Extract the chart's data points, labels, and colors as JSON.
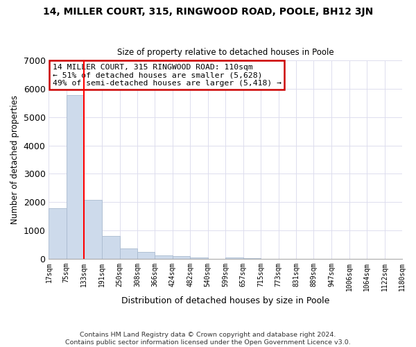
{
  "title": "14, MILLER COURT, 315, RINGWOOD ROAD, POOLE, BH12 3JN",
  "subtitle": "Size of property relative to detached houses in Poole",
  "xlabel": "Distribution of detached houses by size in Poole",
  "ylabel": "Number of detached properties",
  "bar_color": "#cddaeb",
  "bar_edge_color": "#aabbd0",
  "vline_x": 133,
  "vline_color": "red",
  "categories": [
    "17sqm",
    "75sqm",
    "133sqm",
    "191sqm",
    "250sqm",
    "308sqm",
    "366sqm",
    "424sqm",
    "482sqm",
    "540sqm",
    "599sqm",
    "657sqm",
    "715sqm",
    "773sqm",
    "831sqm",
    "889sqm",
    "947sqm",
    "1006sqm",
    "1064sqm",
    "1122sqm",
    "1180sqm"
  ],
  "bin_edges": [
    17,
    75,
    133,
    191,
    250,
    308,
    366,
    424,
    482,
    540,
    599,
    657,
    715,
    773,
    831,
    889,
    947,
    1006,
    1064,
    1122,
    1180
  ],
  "values": [
    1780,
    5780,
    2080,
    810,
    370,
    230,
    120,
    80,
    40,
    0,
    40,
    20,
    0,
    0,
    0,
    0,
    0,
    0,
    0,
    0
  ],
  "ylim": [
    0,
    7000
  ],
  "yticks": [
    0,
    1000,
    2000,
    3000,
    4000,
    5000,
    6000,
    7000
  ],
  "annotation_line1": "14 MILLER COURT, 315 RINGWOOD ROAD: 110sqm",
  "annotation_line2": "← 51% of detached houses are smaller (5,628)",
  "annotation_line3": "49% of semi-detached houses are larger (5,418) →",
  "annotation_box_color": "white",
  "annotation_box_edgecolor": "#cc0000",
  "footer_line1": "Contains HM Land Registry data © Crown copyright and database right 2024.",
  "footer_line2": "Contains public sector information licensed under the Open Government Licence v3.0.",
  "background_color": "white",
  "grid_color": "#ddddee"
}
